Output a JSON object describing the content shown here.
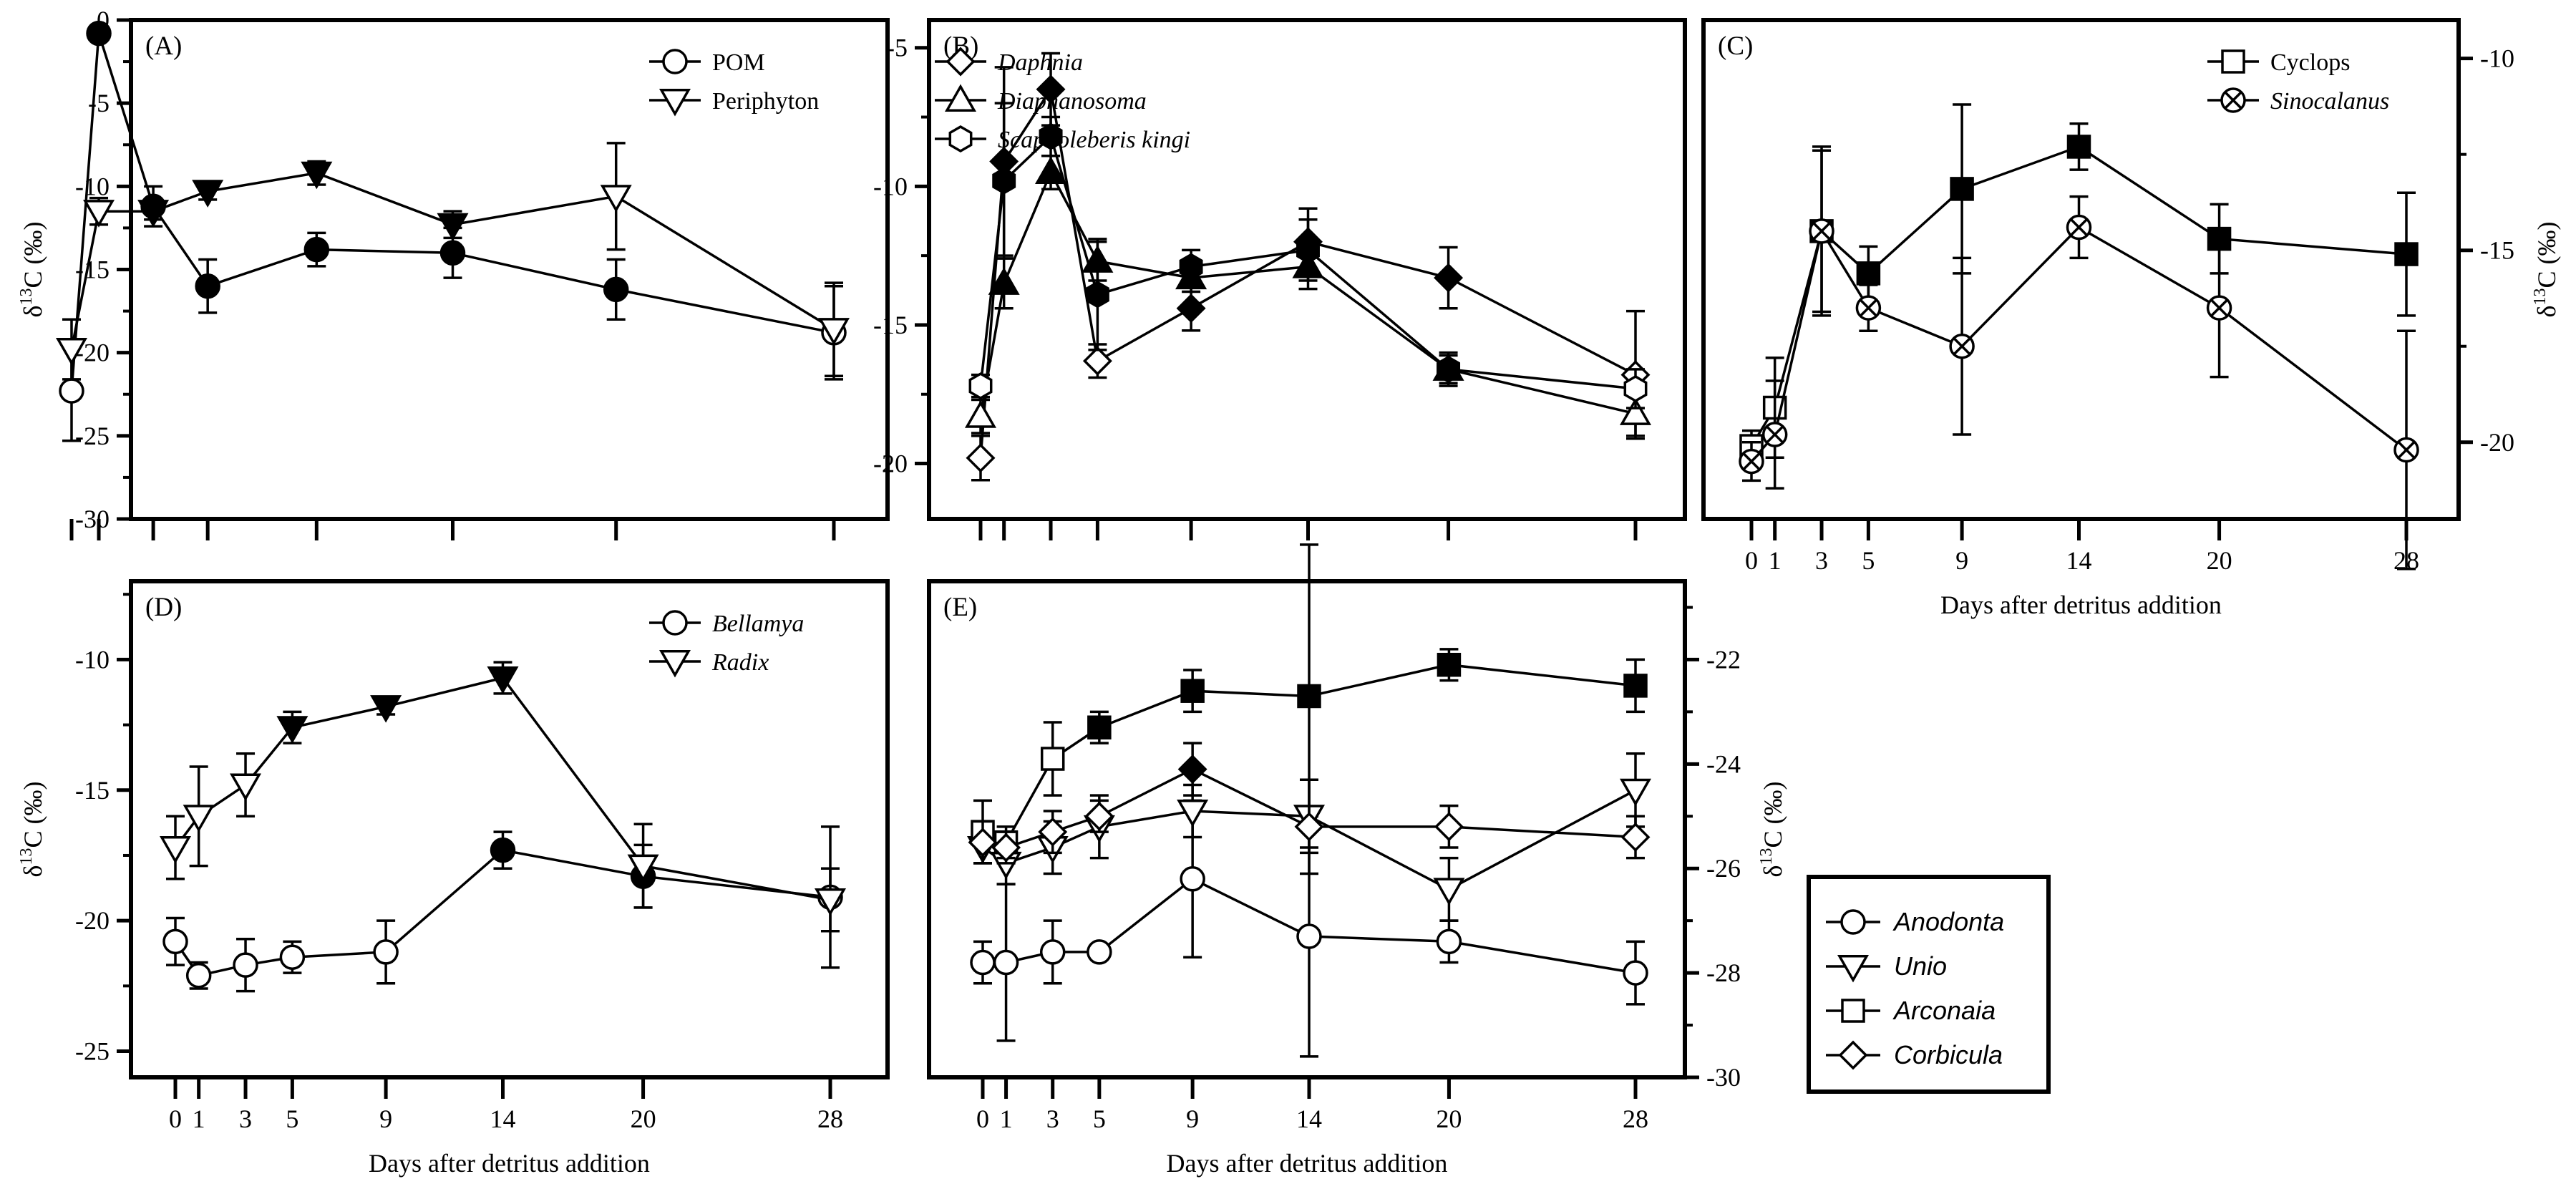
{
  "figure": {
    "x_axis_title": "Days after detritus addition",
    "y_axis_title": "δ¹³C (‰)",
    "day_tick_labels": [
      "0",
      "1",
      "3",
      "5",
      "9",
      "14",
      "20",
      "28"
    ]
  },
  "chart_data": [
    {
      "id": "A",
      "label": "(A)",
      "type": "line",
      "x": [
        0,
        1,
        3,
        5,
        9,
        14,
        20,
        28
      ],
      "ylim": [
        -30,
        0
      ],
      "y_ticks": [
        0,
        -5,
        -10,
        -15,
        -20,
        -25,
        -30
      ],
      "y_axis_side": "left",
      "show_y_title": true,
      "show_x_labels": false,
      "legend_position": "top-right",
      "series": [
        {
          "name": "POM",
          "italic": false,
          "marker": "circle",
          "values": [
            -22.3,
            -0.8,
            -11.2,
            -16.0,
            -13.8,
            -14.0,
            -16.2,
            -18.8
          ],
          "errors": [
            3.0,
            0.4,
            1.2,
            1.6,
            1.0,
            1.5,
            1.8,
            2.8
          ],
          "filled": [
            false,
            true,
            true,
            true,
            true,
            true,
            true,
            false
          ]
        },
        {
          "name": "Periphyton",
          "italic": false,
          "marker": "tri_down",
          "values": [
            -19.8,
            -11.5,
            -11.5,
            -10.3,
            -9.2,
            -12.3,
            -10.6,
            -18.6
          ],
          "errors": [
            1.8,
            0.8,
            0.5,
            0.5,
            0.7,
            0.8,
            3.2,
            2.8
          ],
          "filled": [
            false,
            false,
            true,
            true,
            true,
            true,
            false,
            false
          ]
        }
      ]
    },
    {
      "id": "B",
      "label": "(B)",
      "type": "line",
      "x": [
        0,
        1,
        3,
        5,
        9,
        14,
        20,
        28
      ],
      "ylim": [
        -22,
        -4
      ],
      "y_ticks": [
        -5,
        -10,
        -15,
        -20
      ],
      "y_axis_side": "left",
      "show_y_title": false,
      "show_x_labels": false,
      "legend_position": "top-right",
      "series": [
        {
          "name": "Daphnia",
          "italic": true,
          "marker": "diamond",
          "values": [
            -19.8,
            -9.1,
            -6.5,
            -16.3,
            -14.4,
            -12.0,
            -13.3,
            -16.8
          ],
          "errors": [
            0.8,
            3.4,
            1.3,
            0.6,
            0.8,
            1.2,
            1.1,
            2.3
          ],
          "filled": [
            false,
            true,
            true,
            false,
            true,
            true,
            true,
            false
          ]
        },
        {
          "name": "Diaphanosoma",
          "italic": true,
          "marker": "tri_up",
          "values": [
            -18.3,
            -13.5,
            -9.5,
            -12.7,
            -13.3,
            -12.9,
            -16.6,
            -18.2
          ],
          "errors": [
            0.6,
            0.9,
            0.6,
            0.7,
            0.5,
            0.8,
            0.5,
            0.8
          ],
          "filled": [
            false,
            true,
            true,
            true,
            true,
            true,
            true,
            false
          ]
        },
        {
          "name": "Scapholeberis kingi",
          "italic": true,
          "marker": "hexagon",
          "values": [
            -17.2,
            -9.8,
            -8.2,
            -13.9,
            -12.9,
            -12.3,
            -16.6,
            -17.3
          ],
          "errors": [
            0.4,
            2.8,
            0.7,
            2.0,
            0.6,
            1.1,
            0.6,
            0.7
          ],
          "filled": [
            false,
            true,
            true,
            true,
            true,
            true,
            true,
            false
          ]
        }
      ]
    },
    {
      "id": "C",
      "label": "(C)",
      "type": "line",
      "x": [
        0,
        1,
        3,
        5,
        9,
        14,
        20,
        28
      ],
      "ylim": [
        -22,
        -9
      ],
      "y_ticks": [
        -10,
        -15,
        -20
      ],
      "y_axis_side": "right",
      "show_y_title": true,
      "show_x_labels": true,
      "legend_position": "top-right",
      "series": [
        {
          "name": "Cyclops",
          "italic": false,
          "marker": "square",
          "values": [
            -20.1,
            -19.1,
            -14.5,
            -15.6,
            -13.4,
            -12.3,
            -14.7,
            -15.1
          ],
          "errors": [
            0.4,
            1.3,
            2.2,
            0.7,
            2.2,
            0.6,
            0.9,
            1.6
          ],
          "filled": [
            false,
            false,
            true,
            true,
            true,
            true,
            true,
            true
          ]
        },
        {
          "name": "Sinocalanus",
          "italic": true,
          "marker": "circle_x",
          "values": [
            -20.5,
            -19.8,
            -14.5,
            -16.5,
            -17.5,
            -14.4,
            -16.5,
            -20.2
          ],
          "errors": [
            0.5,
            1.4,
            2.1,
            0.6,
            2.3,
            0.8,
            1.8,
            3.1
          ],
          "filled": [
            false,
            false,
            false,
            false,
            false,
            false,
            false,
            false
          ]
        }
      ]
    },
    {
      "id": "D",
      "label": "(D)",
      "type": "line",
      "x": [
        0,
        1,
        3,
        5,
        9,
        14,
        20,
        28
      ],
      "ylim": [
        -26,
        -7
      ],
      "y_ticks": [
        -10,
        -15,
        -20,
        -25
      ],
      "y_axis_side": "left",
      "show_y_title": true,
      "show_x_labels": true,
      "legend_position": "top-right",
      "series": [
        {
          "name": "Bellamya",
          "italic": true,
          "marker": "circle",
          "values": [
            -20.8,
            -22.1,
            -21.7,
            -21.4,
            -21.2,
            -17.3,
            -18.3,
            -19.1
          ],
          "errors": [
            0.9,
            0.5,
            1.0,
            0.6,
            1.2,
            0.7,
            1.2,
            2.7
          ],
          "filled": [
            false,
            false,
            false,
            false,
            false,
            true,
            true,
            false
          ]
        },
        {
          "name": "Radix",
          "italic": true,
          "marker": "tri_down",
          "values": [
            -17.2,
            -16.0,
            -14.8,
            -12.6,
            -11.8,
            -10.7,
            -17.9,
            -19.2
          ],
          "errors": [
            1.2,
            1.9,
            1.2,
            0.6,
            0.3,
            0.6,
            1.6,
            1.2
          ],
          "filled": [
            false,
            false,
            false,
            true,
            true,
            true,
            false,
            false
          ]
        }
      ]
    },
    {
      "id": "E",
      "label": "(E)",
      "type": "line",
      "x": [
        0,
        1,
        3,
        5,
        9,
        14,
        20,
        28
      ],
      "ylim": [
        -30,
        -20.5
      ],
      "y_ticks": [
        -22,
        -24,
        -26,
        -28,
        -30
      ],
      "y_axis_side": "right",
      "show_y_title": true,
      "show_x_labels": true,
      "legend_position": "external-box",
      "series": [
        {
          "name": "Anodonta",
          "italic": true,
          "marker": "circle",
          "values": [
            -27.8,
            -27.8,
            -27.6,
            -27.6,
            -26.2,
            -27.3,
            -27.4,
            -28.0
          ],
          "errors": [
            0.4,
            1.5,
            0.6,
            0.0,
            1.5,
            2.3,
            0.4,
            0.6
          ],
          "filled": [
            false,
            false,
            false,
            false,
            false,
            false,
            false,
            false
          ]
        },
        {
          "name": "Unio",
          "italic": true,
          "marker": "tri_down",
          "values": [
            -25.6,
            -25.9,
            -25.6,
            -25.2,
            -24.9,
            -25.0,
            -26.4,
            -24.5
          ],
          "errors": [
            0.3,
            0.4,
            0.5,
            0.6,
            0.5,
            0.7,
            0.6,
            0.7
          ],
          "filled": [
            false,
            false,
            false,
            false,
            false,
            false,
            false,
            false
          ]
        },
        {
          "name": "Arconaia",
          "italic": true,
          "marker": "square",
          "values": [
            -25.3,
            -25.5,
            -23.9,
            -23.3,
            -22.6,
            -22.7,
            -22.1,
            -22.5
          ],
          "errors": [
            0.6,
            0.3,
            0.7,
            0.3,
            0.4,
            2.9,
            0.3,
            0.5
          ],
          "filled": [
            false,
            false,
            false,
            true,
            true,
            true,
            true,
            true
          ]
        },
        {
          "name": "Corbicula",
          "italic": true,
          "marker": "diamond",
          "values": [
            -25.5,
            -25.6,
            -25.3,
            -25.0,
            -24.1,
            -25.2,
            -25.2,
            -25.4
          ],
          "errors": [
            0.4,
            0.3,
            0.4,
            0.3,
            0.5,
            0.9,
            0.4,
            0.4
          ],
          "filled": [
            false,
            false,
            false,
            false,
            true,
            false,
            false,
            false
          ]
        }
      ]
    }
  ]
}
